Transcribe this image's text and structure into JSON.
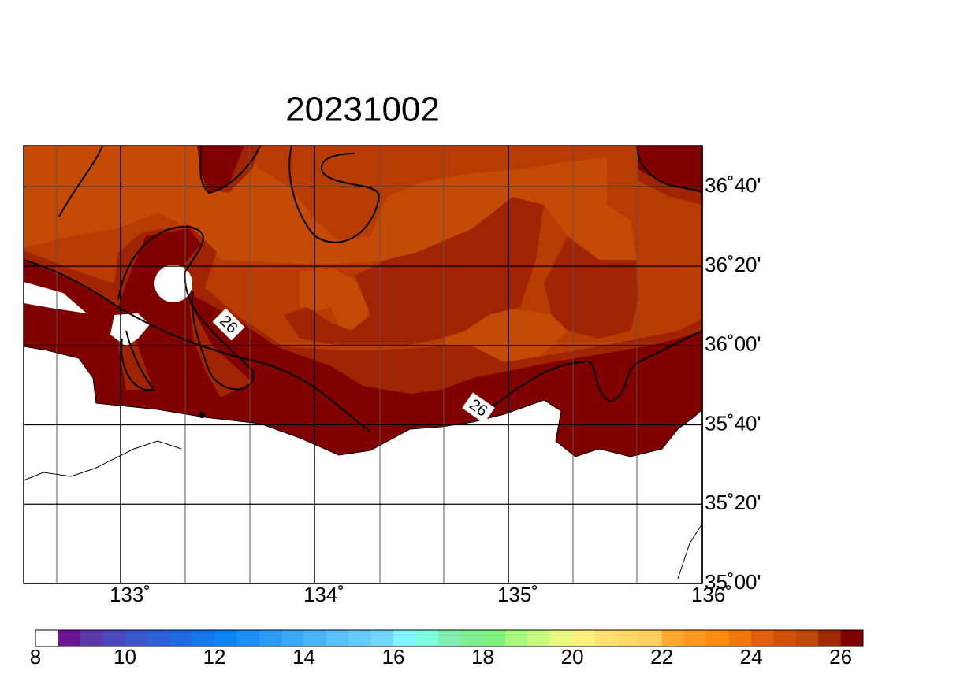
{
  "title": "20231002",
  "map": {
    "xlim": [
      132.5,
      136
    ],
    "ylim": [
      35,
      36.84
    ],
    "xticks": [
      {
        "value": 133,
        "label": "133˚"
      },
      {
        "value": 134,
        "label": "134˚"
      },
      {
        "value": 135,
        "label": "135˚"
      },
      {
        "value": 136,
        "label": "136˚"
      }
    ],
    "yticks": [
      {
        "value": 35,
        "label": "35˚00'"
      },
      {
        "value": 35.3333,
        "label": "35˚20'"
      },
      {
        "value": 35.6667,
        "label": "35˚40'"
      },
      {
        "value": 36,
        "label": "36˚00'"
      },
      {
        "value": 36.3333,
        "label": "36˚20'"
      },
      {
        "value": 36.6667,
        "label": "36˚40'"
      }
    ],
    "contour_labels": [
      26,
      26
    ]
  },
  "colorbar": {
    "lim": [
      8,
      26.5
    ],
    "ticks": [
      8,
      10,
      12,
      14,
      16,
      18,
      20,
      22,
      24,
      26
    ],
    "colors": [
      "#ffffff",
      "#6c1590",
      "#5a3aa8",
      "#4a48bb",
      "#3b55cc",
      "#2d5fd6",
      "#1f68de",
      "#1476e8",
      "#0a84f4",
      "#1a90f5",
      "#2a9cf6",
      "#3aa8f6",
      "#4ab4f7",
      "#5ac0f8",
      "#66ccfa",
      "#72d8fb",
      "#80f4ff",
      "#80ffe0",
      "#80f0b0",
      "#80ee90",
      "#80f080",
      "#a8f880",
      "#c8fa80",
      "#e8fa80",
      "#fff080",
      "#ffe070",
      "#ffd868",
      "#ffd060",
      "#ffa830",
      "#ff9820",
      "#ff8c10",
      "#f07808",
      "#e06010",
      "#d05008",
      "#c04808",
      "#a02a04",
      "#7e0000"
    ]
  }
}
